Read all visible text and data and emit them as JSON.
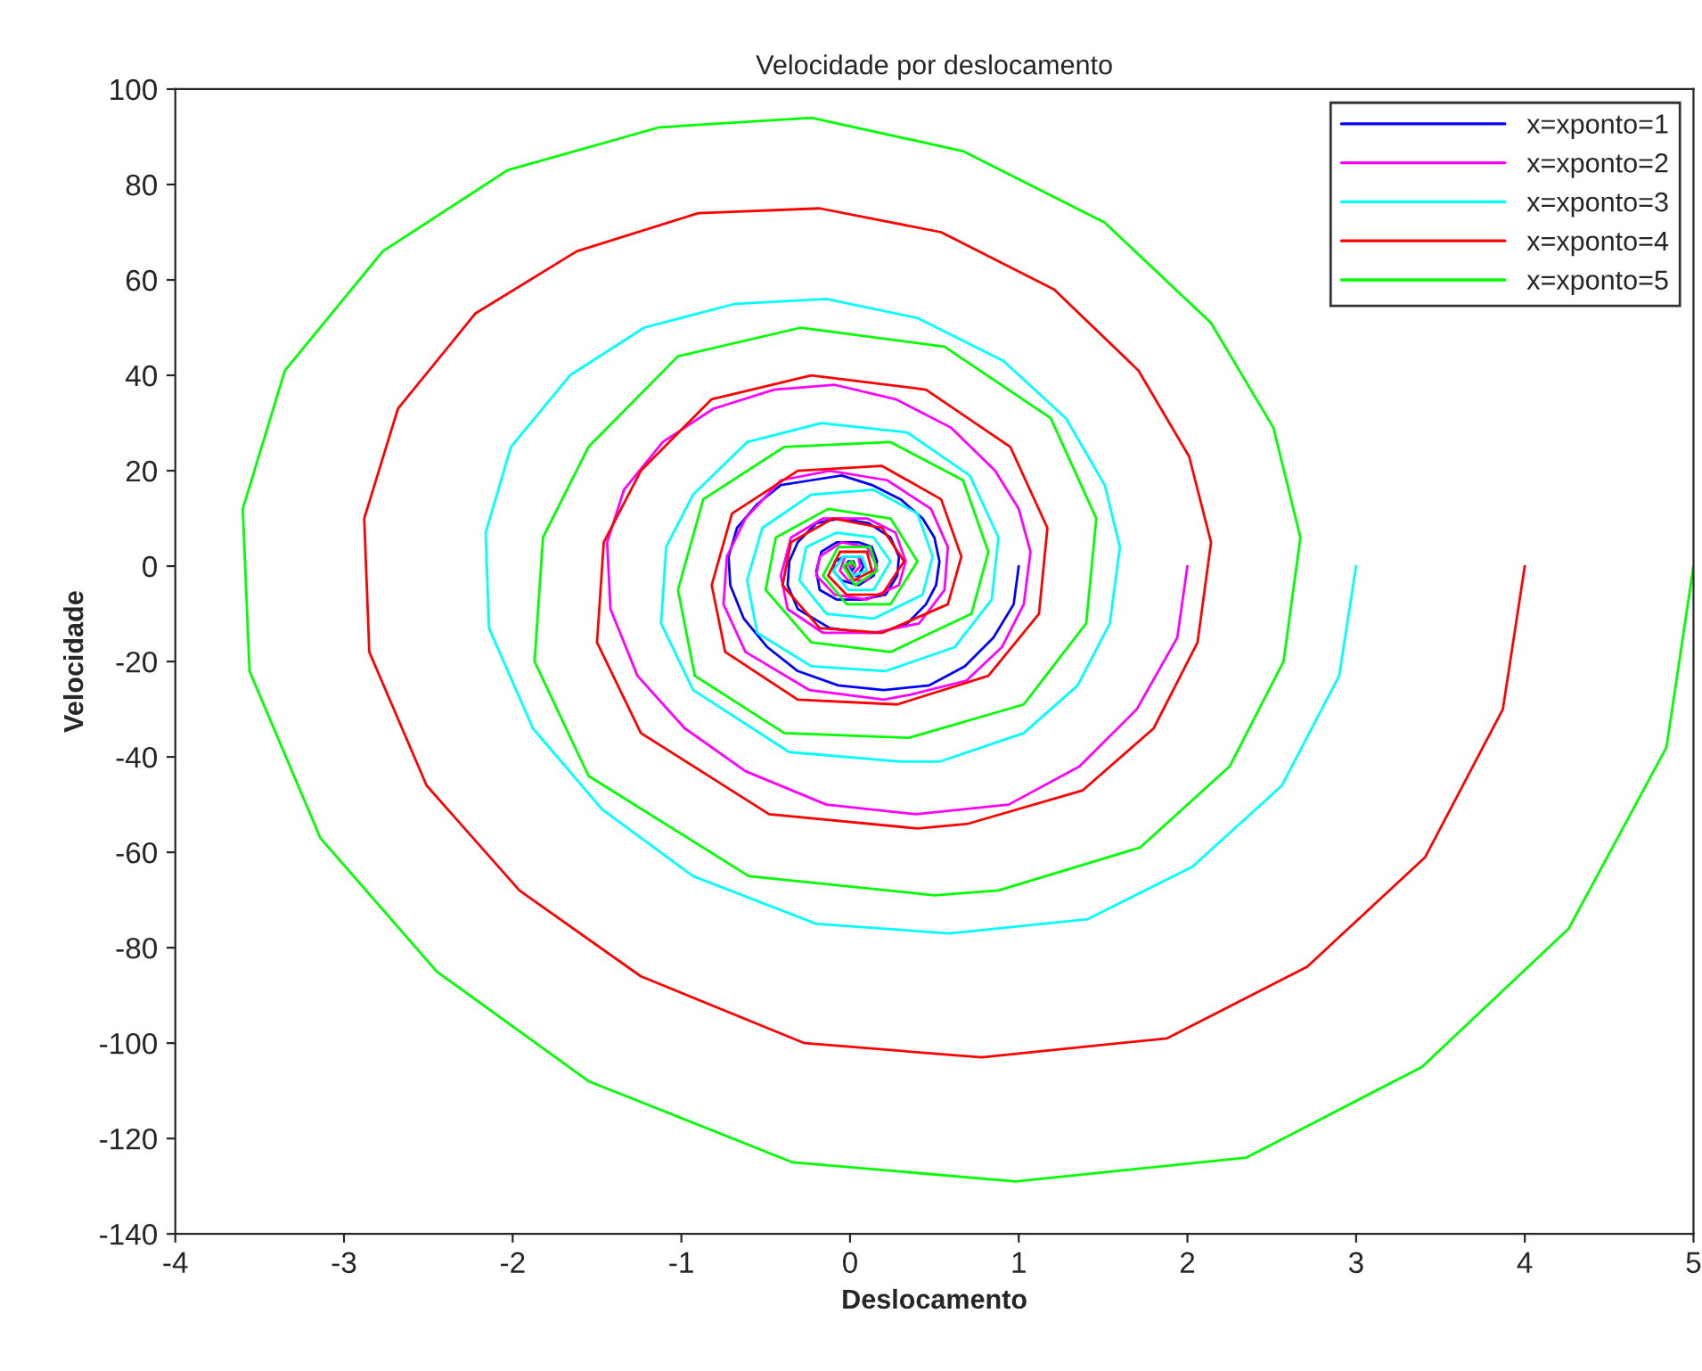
{
  "chart_data": {
    "type": "line",
    "title": "Velocidade por deslocamento",
    "xlabel": "Deslocamento",
    "ylabel": "Velocidade",
    "xlim": [
      -4,
      5
    ],
    "ylim": [
      -140,
      100
    ],
    "xticks": [
      -4,
      -3,
      -2,
      -1,
      0,
      1,
      2,
      3,
      4,
      5
    ],
    "yticks": [
      -140,
      -120,
      -100,
      -80,
      -60,
      -40,
      -20,
      0,
      20,
      40,
      60,
      80,
      100
    ],
    "grid": false,
    "legend": "top right",
    "marker": "none",
    "line_style": "solid",
    "series": [
      {
        "name": "x=xponto=1",
        "color": "#0000ff",
        "x": [
          1,
          0.97,
          0.85,
          0.68,
          0.47,
          0.2,
          -0.07,
          -0.31,
          -0.49,
          -0.63,
          -0.71,
          -0.72,
          -0.67,
          -0.55,
          -0.41,
          -0.23,
          -0.05,
          0.13,
          0.3,
          0.43,
          0.5,
          0.53,
          0.51,
          0.45,
          0.34,
          0.18,
          0.1,
          -0.12,
          -0.31,
          -0.37,
          -0.36,
          -0.31,
          -0.2,
          -0.06,
          0.11,
          0.24,
          0.29,
          0.28,
          0.21,
          0.07,
          -0.08,
          -0.18,
          -0.2,
          -0.17,
          -0.08,
          0.05,
          0.13,
          0.16,
          0.14,
          0.05,
          -0.05,
          -0.1,
          -0.09,
          -0.03,
          0.05,
          0.08,
          0.05,
          0,
          -0.03,
          -0.01,
          0.02,
          0.03,
          0.01,
          -0.01,
          0,
          0.01
        ],
        "values": [
          0,
          -8,
          -15,
          -21,
          -25,
          -26,
          -25,
          -22,
          -17,
          -11,
          -4,
          2,
          8,
          13,
          17,
          18,
          19,
          17,
          14,
          10,
          6,
          1,
          -4,
          -8,
          -12,
          -14,
          -14,
          -13,
          -9,
          -4,
          1,
          5,
          9,
          10,
          9,
          6,
          2,
          -2,
          -6,
          -7,
          -7,
          -5,
          -1,
          3,
          5,
          5,
          4,
          1,
          -2,
          -4,
          -3,
          -1,
          1,
          2,
          2,
          0,
          -2,
          -2,
          0,
          1,
          1,
          0,
          -1,
          0,
          0,
          0
        ]
      },
      {
        "name": "x=xponto=2",
        "color": "#ff00ff",
        "x": [
          2,
          1.94,
          1.7,
          1.36,
          0.94,
          0.39,
          -0.14,
          -0.62,
          -0.98,
          -1.26,
          -1.42,
          -1.44,
          -1.34,
          -1.11,
          -0.81,
          -0.45,
          -0.09,
          0.27,
          0.6,
          0.86,
          1,
          1.07,
          1.03,
          0.9,
          0.69,
          0.35,
          0.2,
          -0.24,
          -0.62,
          -0.75,
          -0.73,
          -0.62,
          -0.41,
          -0.12,
          0.22,
          0.48,
          0.58,
          0.56,
          0.41,
          0.14,
          -0.16,
          -0.37,
          -0.41,
          -0.35,
          -0.16,
          0.1,
          0.27,
          0.33,
          0.29,
          0.1,
          -0.09,
          -0.2,
          -0.18,
          -0.05,
          0.1,
          0.16,
          0.1,
          -0.01,
          -0.06,
          -0.03,
          0.05,
          0.06,
          0.01,
          -0.02,
          0,
          0.01
        ],
        "values": [
          0,
          -15,
          -30,
          -42,
          -50,
          -52,
          -50,
          -43,
          -34,
          -23,
          -9,
          5,
          16,
          26,
          33,
          37,
          38,
          35,
          29,
          20,
          12,
          3,
          -8,
          -17,
          -24,
          -27,
          -28,
          -26,
          -18,
          -8,
          2,
          10,
          18,
          20,
          18,
          12,
          4,
          -5,
          -12,
          -14,
          -14,
          -9,
          -2,
          6,
          10,
          10,
          7,
          1,
          -4,
          -7,
          -6,
          -2,
          2,
          5,
          4,
          0,
          -3,
          -3,
          -1,
          2,
          2,
          0,
          -2,
          0,
          0,
          0
        ]
      },
      {
        "name": "x=xponto=3",
        "color": "#00ffff",
        "x": [
          3,
          2.9,
          2.56,
          2.03,
          1.41,
          0.59,
          -0.2,
          -0.93,
          -1.47,
          -1.88,
          -2.14,
          -2.16,
          -2.01,
          -1.66,
          -1.22,
          -0.68,
          -0.14,
          0.4,
          0.91,
          1.28,
          1.51,
          1.6,
          1.54,
          1.35,
          1.03,
          0.53,
          0.3,
          -0.36,
          -0.93,
          -1.12,
          -1.09,
          -0.93,
          -0.61,
          -0.17,
          0.34,
          0.71,
          0.88,
          0.84,
          0.62,
          0.21,
          -0.23,
          -0.55,
          -0.61,
          -0.52,
          -0.23,
          0.14,
          0.4,
          0.49,
          0.43,
          0.14,
          -0.14,
          -0.3,
          -0.26,
          -0.08,
          0.14,
          0.24,
          0.14,
          -0.01,
          -0.1,
          -0.04,
          0.07,
          0.1,
          0.02,
          -0.02,
          0.01,
          0.02
        ],
        "values": [
          0,
          -23,
          -46,
          -63,
          -74,
          -77,
          -75,
          -65,
          -51,
          -34,
          -13,
          7,
          25,
          40,
          50,
          55,
          56,
          52,
          43,
          31,
          17,
          4,
          -12,
          -25,
          -35,
          -41,
          -41,
          -39,
          -26,
          -12,
          4,
          15,
          26,
          30,
          28,
          19,
          6,
          -7,
          -17,
          -22,
          -21,
          -14,
          -3,
          8,
          15,
          16,
          11,
          2,
          -6,
          -11,
          -10,
          -3,
          4,
          7,
          6,
          1,
          -5,
          -5,
          -1,
          2,
          2,
          -1,
          -2,
          0,
          1,
          0
        ]
      },
      {
        "name": "x=xponto=4",
        "color": "#ff0000",
        "x": [
          4,
          3.87,
          3.41,
          2.71,
          1.88,
          0.78,
          -0.27,
          -1.24,
          -1.96,
          -2.51,
          -2.85,
          -2.88,
          -2.68,
          -2.22,
          -1.62,
          -0.9,
          -0.18,
          0.54,
          1.21,
          1.71,
          2.01,
          2.14,
          2.06,
          1.8,
          1.38,
          0.7,
          0.4,
          -0.48,
          -1.24,
          -1.5,
          -1.46,
          -1.24,
          -0.82,
          -0.23,
          0.45,
          0.95,
          1.17,
          1.12,
          0.82,
          0.28,
          -0.31,
          -0.74,
          -0.82,
          -0.7,
          -0.31,
          0.19,
          0.54,
          0.66,
          0.58,
          0.19,
          -0.18,
          -0.4,
          -0.35,
          -0.1,
          0.19,
          0.32,
          0.19,
          -0.02,
          -0.13,
          -0.06,
          0.1,
          0.13,
          0.02,
          -0.03,
          0.01,
          0.02
        ],
        "values": [
          0,
          -30,
          -61,
          -84,
          -99,
          -103,
          -100,
          -86,
          -68,
          -46,
          -18,
          10,
          33,
          53,
          66,
          74,
          75,
          70,
          58,
          41,
          23,
          5,
          -16,
          -34,
          -47,
          -54,
          -55,
          -52,
          -35,
          -16,
          5,
          20,
          35,
          40,
          37,
          25,
          8,
          -10,
          -23,
          -29,
          -28,
          -18,
          -4,
          11,
          20,
          21,
          14,
          2,
          -8,
          -14,
          -13,
          -4,
          5,
          10,
          8,
          1,
          -6,
          -6,
          -2,
          3,
          3,
          -1,
          -3,
          0,
          1,
          0
        ]
      },
      {
        "name": "x=xponto=5",
        "color": "#00ff00",
        "x": [
          5,
          4.84,
          4.26,
          3.39,
          2.35,
          0.98,
          -0.34,
          -1.55,
          -2.45,
          -3.14,
          -3.56,
          -3.6,
          -3.35,
          -2.77,
          -2.03,
          -1.13,
          -0.23,
          0.67,
          1.51,
          2.14,
          2.51,
          2.67,
          2.57,
          2.25,
          1.72,
          0.88,
          0.5,
          -0.6,
          -1.55,
          -1.87,
          -1.82,
          -1.55,
          -1.02,
          -0.29,
          0.56,
          1.19,
          1.46,
          1.4,
          1.03,
          0.35,
          -0.39,
          -0.92,
          -1.02,
          -0.87,
          -0.39,
          0.24,
          0.67,
          0.82,
          0.72,
          0.24,
          -0.23,
          -0.5,
          -0.44,
          -0.13,
          0.24,
          0.4,
          0.24,
          -0.02,
          -0.16,
          -0.07,
          0.12,
          0.16,
          0.03,
          -0.04,
          0.01,
          0.03
        ],
        "values": [
          0,
          -38,
          -76,
          -105,
          -124,
          -129,
          -125,
          -108,
          -85,
          -57,
          -22,
          12,
          41,
          66,
          83,
          92,
          94,
          87,
          72,
          51,
          29,
          6,
          -20,
          -42,
          -59,
          -68,
          -69,
          -65,
          -44,
          -20,
          6,
          25,
          44,
          50,
          46,
          31,
          10,
          -12,
          -29,
          -36,
          -35,
          -23,
          -5,
          14,
          25,
          26,
          18,
          3,
          -10,
          -18,
          -16,
          -5,
          6,
          12,
          10,
          1,
          -8,
          -8,
          -2,
          4,
          4,
          -1,
          -4,
          0,
          1,
          0
        ]
      }
    ]
  }
}
